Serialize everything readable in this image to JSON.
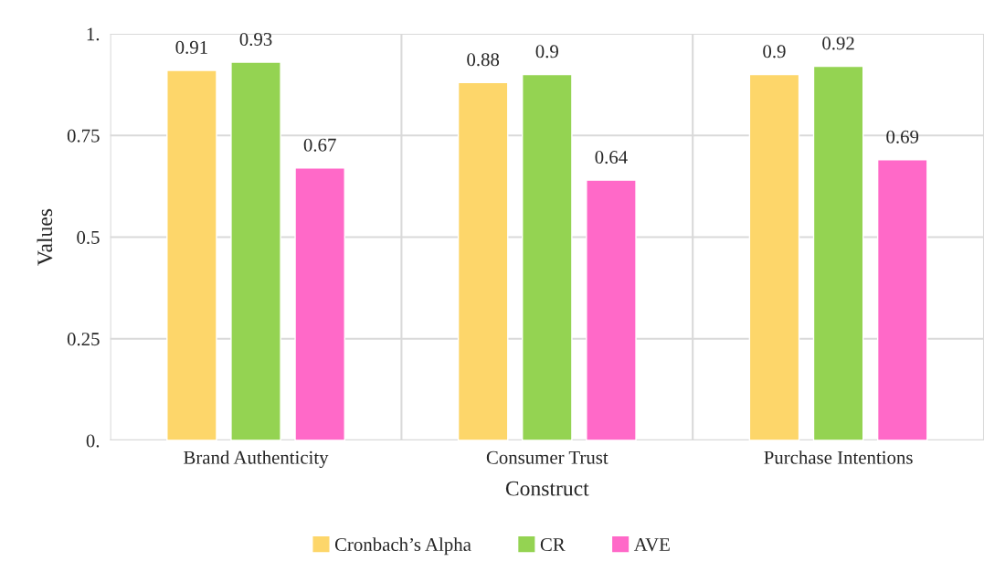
{
  "chart_data": {
    "type": "bar",
    "xlabel": "Construct",
    "ylabel": "Values",
    "categories": [
      "Brand Authenticity",
      "Consumer Trust",
      "Purchase Intentions"
    ],
    "series": [
      {
        "name": "Cronbach’s Alpha",
        "color": "#fdd66a",
        "values": [
          0.91,
          0.88,
          0.9
        ]
      },
      {
        "name": "CR",
        "color": "#94d352",
        "values": [
          0.93,
          0.9,
          0.92
        ]
      },
      {
        "name": "AVE",
        "color": "#ff69c8",
        "values": [
          0.67,
          0.64,
          0.69
        ]
      }
    ],
    "ylim": [
      0,
      1
    ],
    "yticks": [
      {
        "value": 0,
        "label": "0."
      },
      0.25,
      0.5,
      0.75,
      {
        "value": 1,
        "label": "1."
      }
    ],
    "grid": true,
    "legend": "bottom",
    "data_labels": true
  }
}
